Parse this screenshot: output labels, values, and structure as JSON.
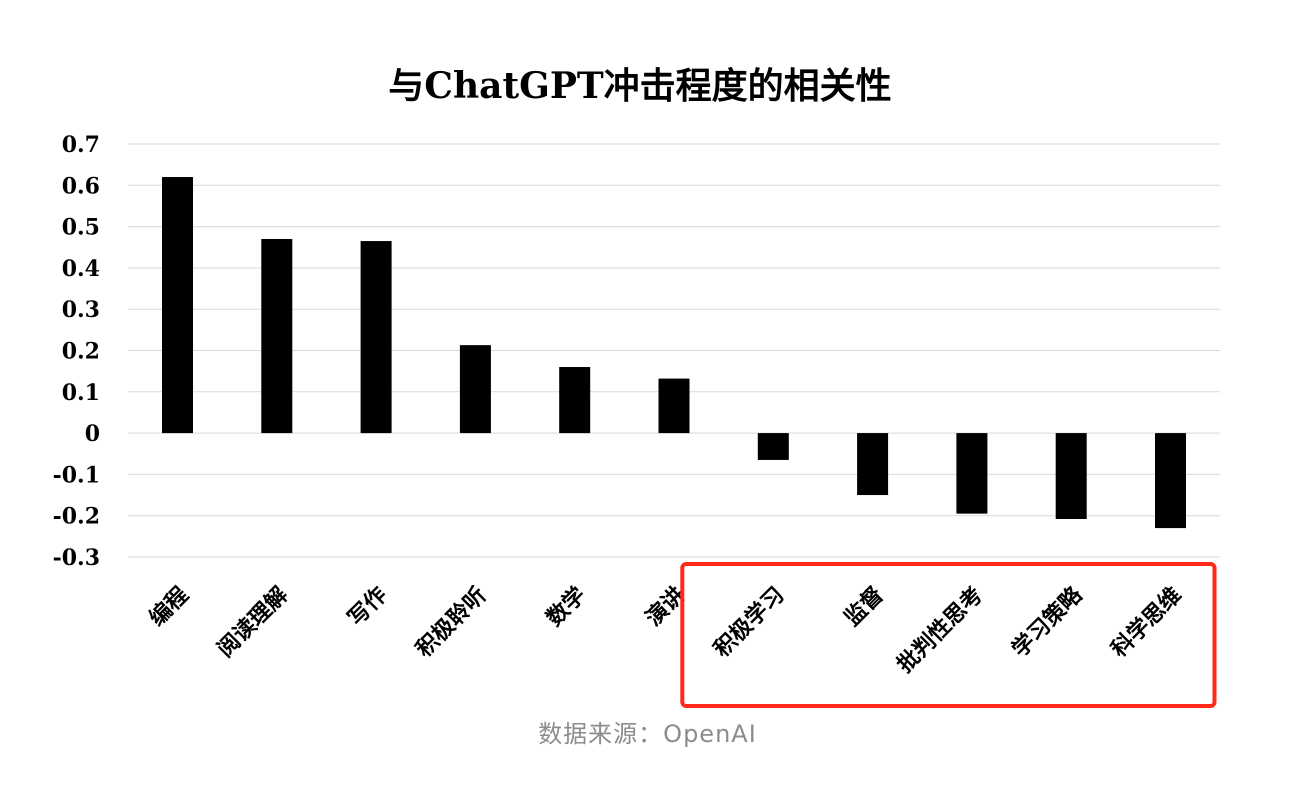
{
  "chart_data": {
    "type": "bar",
    "title": "与ChatGPT冲击程度的相关性",
    "categories": [
      "编程",
      "阅读理解",
      "写作",
      "积极聆听",
      "数学",
      "演讲",
      "积极学习",
      "监督",
      "批判性思考",
      "学习策略",
      "科学思维"
    ],
    "values": [
      0.62,
      0.47,
      0.465,
      0.213,
      0.16,
      0.132,
      -0.065,
      -0.15,
      -0.195,
      -0.208,
      -0.23
    ],
    "ylim": [
      -0.3,
      0.7
    ],
    "yticks": [
      "0.7",
      "0.6",
      "0.5",
      "0.4",
      "0.3",
      "0.2",
      "0.1",
      "0",
      "-0.1",
      "-0.2",
      "-0.3"
    ],
    "xlabel": "",
    "ylabel": "",
    "grid": true,
    "bar_color": "#000000",
    "highlight": {
      "categories": [
        "积极学习",
        "监督",
        "批判性思考",
        "学习策略",
        "科学思维"
      ],
      "color": "#ff2a1a"
    }
  },
  "source": "数据来源：OpenAI"
}
